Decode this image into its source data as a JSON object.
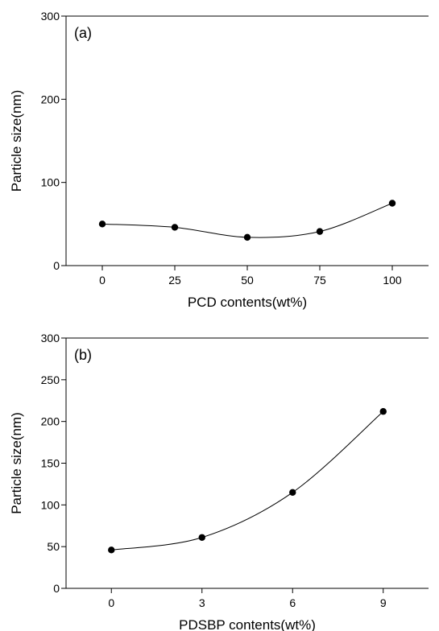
{
  "chart_data": [
    {
      "type": "line",
      "panel_label": "(a)",
      "xlabel": "PCD contents(wt%)",
      "ylabel": "Particle size(nm)",
      "x": [
        0,
        25,
        50,
        75,
        100
      ],
      "xticks": [
        "0",
        "25",
        "50",
        "75",
        "100"
      ],
      "xlim": [
        -12.5,
        112.5
      ],
      "ylim": [
        0,
        300
      ],
      "yticks": [
        0,
        100,
        200,
        300
      ],
      "series": [
        {
          "values": [
            50,
            46,
            34,
            41,
            75
          ],
          "color": "#000000",
          "marker": "circle"
        }
      ],
      "smooth": true,
      "grid": false
    },
    {
      "type": "line",
      "panel_label": "(b)",
      "xlabel": "PDSBP contents(wt%)",
      "ylabel": "Particle size(nm)",
      "x": [
        0,
        3,
        6,
        9
      ],
      "xticks": [
        "0",
        "3",
        "6",
        "9"
      ],
      "xlim": [
        -1.5,
        10.5
      ],
      "ylim": [
        0,
        300
      ],
      "yticks": [
        0,
        50,
        100,
        150,
        200,
        250,
        300
      ],
      "series": [
        {
          "values": [
            46,
            61,
            115,
            212
          ],
          "color": "#000000",
          "marker": "circle"
        }
      ],
      "smooth": true,
      "grid": false
    }
  ]
}
